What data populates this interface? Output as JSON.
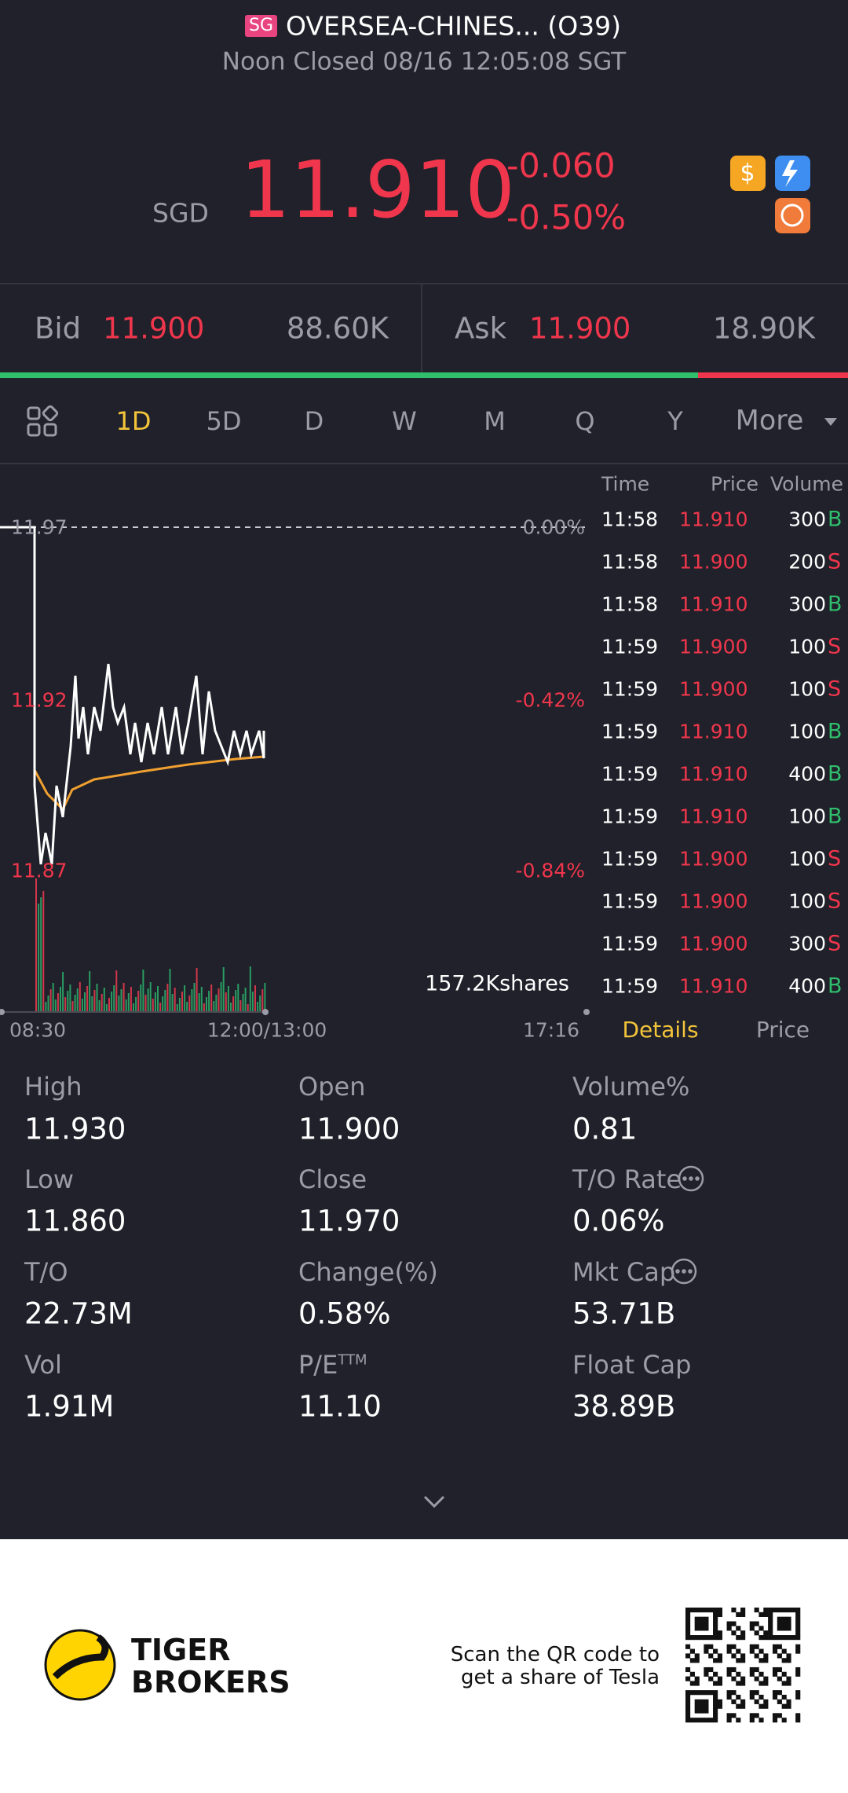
{
  "header": {
    "market_badge": "SG",
    "title": "OVERSEA-CHINES... (O39)",
    "status": "Noon Closed 08/16 12:05:08 SGT"
  },
  "quote": {
    "currency": "SGD",
    "price": "11.910",
    "change": "-0.060",
    "change_pct": "-0.50%"
  },
  "bid_ask": {
    "bid_label": "Bid",
    "bid_price": "11.900",
    "bid_size": "88.60K",
    "ask_label": "Ask",
    "ask_price": "11.900",
    "ask_size": "18.90K"
  },
  "tabs": [
    "1D",
    "5D",
    "D",
    "W",
    "M",
    "Q",
    "Y",
    "More"
  ],
  "intraday": {
    "price_labels": [
      "11.97",
      "11.92",
      "11.87"
    ],
    "pct_labels": [
      "0.00%",
      "-0.42%",
      "-0.84%"
    ],
    "volume_label": "157.2Kshares",
    "time_labels": [
      "08:30",
      "12:00/13:00",
      "17:16"
    ]
  },
  "trades": {
    "columns": [
      "Time",
      "Price",
      "Volume"
    ],
    "rows": [
      {
        "time": "11:58",
        "price": "11.910",
        "volume": "300",
        "side": "B"
      },
      {
        "time": "11:58",
        "price": "11.900",
        "volume": "200",
        "side": "S"
      },
      {
        "time": "11:58",
        "price": "11.910",
        "volume": "300",
        "side": "B"
      },
      {
        "time": "11:59",
        "price": "11.900",
        "volume": "100",
        "side": "S"
      },
      {
        "time": "11:59",
        "price": "11.900",
        "volume": "100",
        "side": "S"
      },
      {
        "time": "11:59",
        "price": "11.910",
        "volume": "100",
        "side": "B"
      },
      {
        "time": "11:59",
        "price": "11.910",
        "volume": "400",
        "side": "B"
      },
      {
        "time": "11:59",
        "price": "11.910",
        "volume": "100",
        "side": "B"
      },
      {
        "time": "11:59",
        "price": "11.900",
        "volume": "100",
        "side": "S"
      },
      {
        "time": "11:59",
        "price": "11.900",
        "volume": "100",
        "side": "S"
      },
      {
        "time": "11:59",
        "price": "11.900",
        "volume": "300",
        "side": "S"
      },
      {
        "time": "11:59",
        "price": "11.910",
        "volume": "400",
        "side": "B"
      }
    ],
    "tabs": [
      "Details",
      "Price"
    ]
  },
  "stats": [
    {
      "label": "High",
      "value": "11.930"
    },
    {
      "label": "Open",
      "value": "11.900"
    },
    {
      "label": "Volume%",
      "value": "0.81"
    },
    {
      "label": "Low",
      "value": "11.860"
    },
    {
      "label": "Close",
      "value": "11.970"
    },
    {
      "label": "T/O Rate",
      "value": "0.06%"
    },
    {
      "label": "T/O",
      "value": "22.73M"
    },
    {
      "label": "Change(%)",
      "value": "0.58%"
    },
    {
      "label": "Mkt Cap",
      "value": "53.71B"
    },
    {
      "label": "Vol",
      "value": "1.91M"
    },
    {
      "label": "P/E",
      "label_sup": "TTM",
      "value": "11.10"
    },
    {
      "label": "Float Cap",
      "value": "38.89B"
    }
  ],
  "footer": {
    "brand": [
      "TIGER",
      "BROKERS"
    ],
    "promo": [
      "Scan the QR code to",
      "get a share of Tesla"
    ]
  }
}
